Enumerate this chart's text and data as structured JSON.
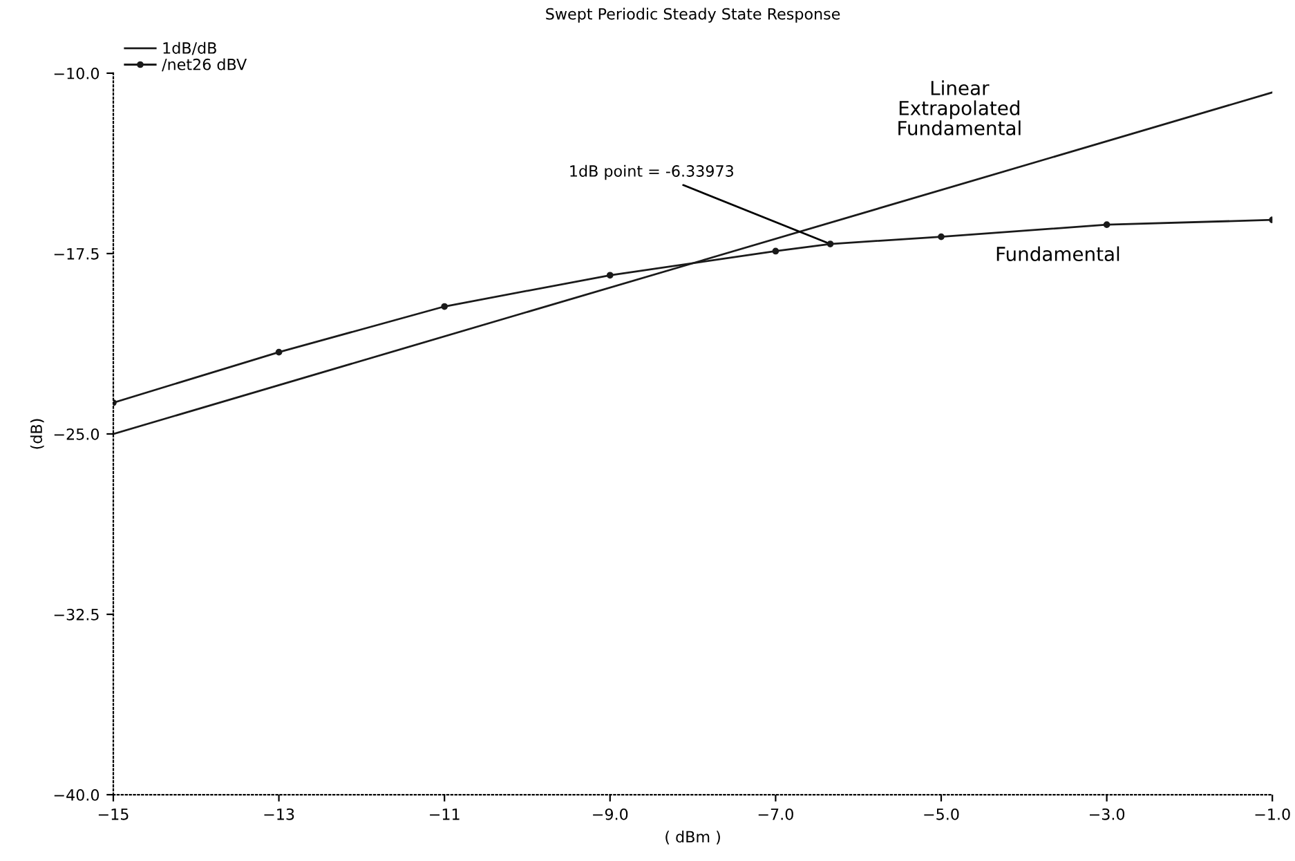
{
  "chart_data": {
    "type": "line",
    "title": "Swept Periodic Steady State Response",
    "xlabel": "( dBm )",
    "ylabel": "(dB)",
    "x": [
      -15,
      -13,
      -11,
      -9,
      -7,
      -6.33973,
      -5,
      -3,
      -1
    ],
    "series": [
      {
        "name": "1dB/dB",
        "color": "#1a1a1a",
        "marker": "none",
        "x": [
          -15,
          -1
        ],
        "values": [
          -25.0,
          -10.8
        ]
      },
      {
        "name": "/net26 dBV",
        "color": "#1a1a1a",
        "marker": "circle",
        "values": [
          -23.7,
          -21.6,
          -19.7,
          -18.4,
          -17.4,
          -17.1,
          -16.8,
          -16.3,
          -16.1
        ]
      }
    ],
    "xlim": [
      -15,
      -1
    ],
    "ylim": [
      -40,
      -10
    ],
    "xticks": [
      {
        "value": -15,
        "label": "−15"
      },
      {
        "value": -13,
        "label": "−13"
      },
      {
        "value": -11,
        "label": "−11"
      },
      {
        "value": -9,
        "label": "−9.0"
      },
      {
        "value": -7,
        "label": "−7.0"
      },
      {
        "value": -5,
        "label": "−5.0"
      },
      {
        "value": -3,
        "label": "−3.0"
      },
      {
        "value": -1,
        "label": "−1.0"
      }
    ],
    "yticks": [
      {
        "value": -10,
        "label": "−10.0"
      },
      {
        "value": -17.5,
        "label": "−17.5"
      },
      {
        "value": -25,
        "label": "−25.0"
      },
      {
        "value": -32.5,
        "label": "−32.5"
      },
      {
        "value": -40,
        "label": "−40.0"
      }
    ],
    "annotations": [
      "Linear\nExtrapolated\nFundamental",
      "Fundamental",
      {
        "text": "1dB point = -6.33973",
        "x": -6.33973,
        "y": -17.1
      }
    ],
    "legend": "top left",
    "grid": false,
    "line_style": "solid"
  }
}
